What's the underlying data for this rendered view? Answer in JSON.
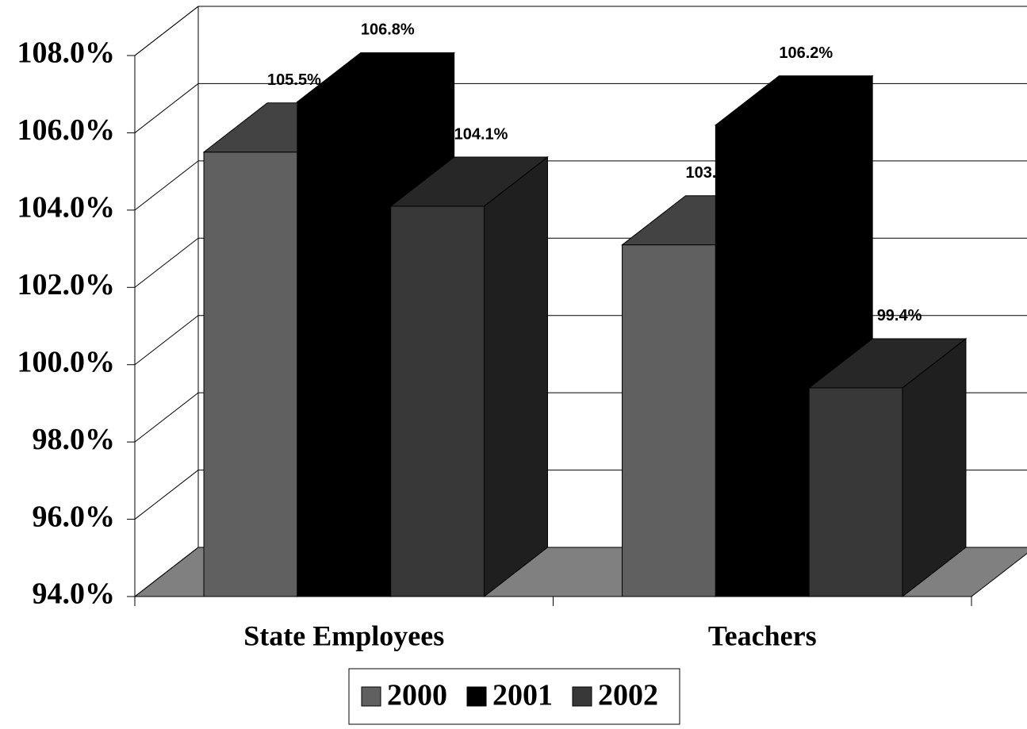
{
  "chart_data": {
    "type": "bar3d",
    "categories": [
      "State Employees",
      "Teachers"
    ],
    "series": [
      {
        "name": "2000",
        "color": "#606060",
        "values": [
          105.5,
          103.1
        ],
        "value_labels": [
          "105.5%",
          "103.1%"
        ]
      },
      {
        "name": "2001",
        "color": "#000000",
        "values": [
          106.8,
          106.2
        ],
        "value_labels": [
          "106.8%",
          "106.2%"
        ]
      },
      {
        "name": "2002",
        "color": "#383838",
        "values": [
          104.1,
          99.4
        ],
        "value_labels": [
          "104.1%",
          "99.4%"
        ]
      }
    ],
    "ylim": [
      94,
      108
    ],
    "yticks": [
      {
        "value": 94,
        "label": "94.0%"
      },
      {
        "value": 96,
        "label": "96.0%"
      },
      {
        "value": 98,
        "label": "98.0%"
      },
      {
        "value": 100,
        "label": "100.0%"
      },
      {
        "value": 102,
        "label": "102.0%"
      },
      {
        "value": 104,
        "label": "104.0%"
      },
      {
        "value": 106,
        "label": "106.0%"
      },
      {
        "value": 108,
        "label": "108.0%"
      }
    ],
    "grid": true,
    "legend": "bottom"
  }
}
